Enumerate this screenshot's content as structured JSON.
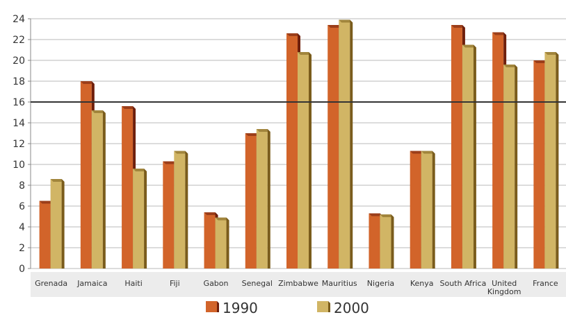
{
  "chart_data": {
    "type": "bar",
    "categories": [
      "Grenada",
      "Jamaica",
      "Haiti",
      "Fiji",
      "Gabon",
      "Senegal",
      "Zimbabwe",
      "Mauritius",
      "Nigeria",
      "Kenya",
      "South Africa",
      "United Kingdom",
      "France"
    ],
    "category_lines": [
      [
        "Grenada"
      ],
      [
        "Jamaica"
      ],
      [
        "Haiti"
      ],
      [
        "Fiji"
      ],
      [
        "Gabon"
      ],
      [
        "Senegal"
      ],
      [
        "Zimbabwe"
      ],
      [
        "Mauritius"
      ],
      [
        "Nigeria"
      ],
      [
        "Kenya"
      ],
      [
        "South Africa"
      ],
      [
        "United",
        "Kingdom"
      ],
      [
        "France"
      ]
    ],
    "series": [
      {
        "name": "1990",
        "values": [
          6.5,
          18.0,
          15.6,
          10.3,
          5.4,
          13.0,
          22.6,
          23.4,
          5.3,
          11.3,
          23.4,
          22.7,
          20.0
        ]
      },
      {
        "name": "2000",
        "values": [
          8.6,
          15.2,
          9.6,
          11.3,
          4.9,
          13.4,
          20.8,
          23.9,
          5.2,
          11.3,
          21.5,
          19.6,
          20.8
        ]
      }
    ],
    "reference_line": 16,
    "yticks": [
      0,
      2,
      4,
      6,
      8,
      10,
      12,
      14,
      16,
      18,
      20,
      22,
      24
    ],
    "ylim": [
      0,
      24
    ],
    "title": "",
    "xlabel": "",
    "ylabel": "",
    "grid": true,
    "legend_position": "bottom",
    "colors": {
      "1990": "#d2642a",
      "1990_shade": "#6e1f0c",
      "2000": "#d1b565",
      "2000_shade": "#7a5c1c",
      "grid": "#b8b8b8",
      "reference_line": "#333333",
      "background_band": "#ececec"
    }
  }
}
